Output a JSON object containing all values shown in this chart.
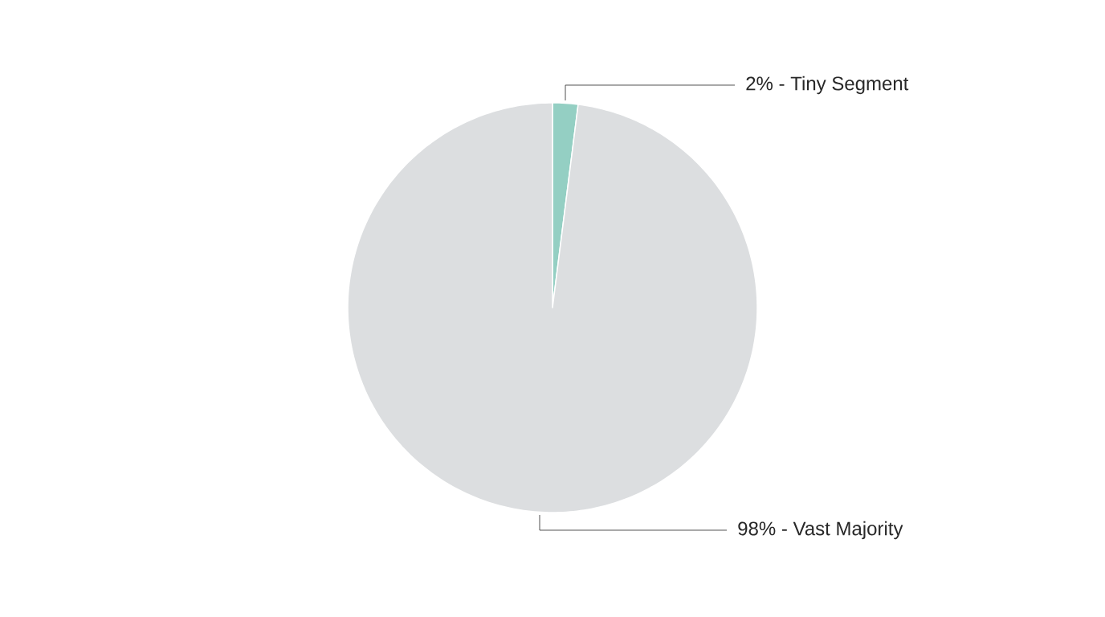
{
  "chart_data": {
    "type": "pie",
    "categories": [
      "2% - Tiny Segment",
      "98% - Vast Majority"
    ],
    "values": [
      2,
      98
    ],
    "colors": [
      "#94cfc3",
      "#dcdee0"
    ]
  }
}
